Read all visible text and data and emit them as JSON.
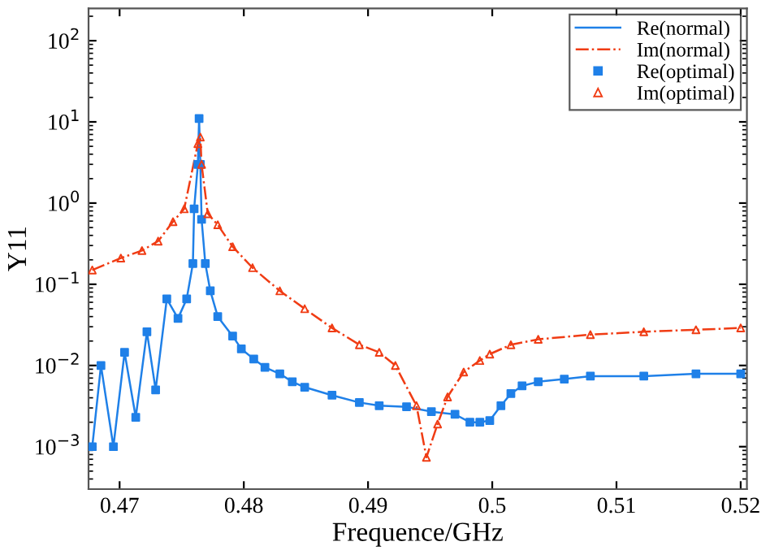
{
  "chart_data": {
    "type": "line",
    "xlabel": "Frequence/GHz",
    "ylabel": "Y11",
    "log": "y",
    "grid": false,
    "legend": "top right",
    "xlim": [
      0.4675,
      0.5205
    ],
    "xticks": [
      0.47,
      0.48,
      0.49,
      0.5,
      0.51,
      0.52
    ],
    "ylim": [
      0.0003,
      250
    ],
    "yticks": [
      {
        "value": 0.001,
        "label": "10$^{−3}$"
      },
      {
        "value": 0.01,
        "label": "10$^{−2}$"
      },
      {
        "value": 0.1,
        "label": "10$^{−1}$"
      },
      {
        "value": 1,
        "label": "10$^{0}$"
      },
      {
        "value": 10,
        "label": "10$^{1}$"
      },
      {
        "value": 100,
        "label": "10$^{2}$"
      }
    ],
    "series": [
      {
        "name": "Re(normal)",
        "color": "#1f80e8",
        "line_style": "solid",
        "marker": "none",
        "x": [
          0.4678,
          0.4685,
          0.4695,
          0.4704,
          0.4713,
          0.4722,
          0.4729,
          0.4738,
          0.4747,
          0.4754,
          0.4759,
          0.476,
          0.4763,
          0.4764,
          0.4765,
          0.4766,
          0.4769,
          0.4773,
          0.4779,
          0.4791,
          0.4798,
          0.4808,
          0.4817,
          0.4829,
          0.4839,
          0.4849,
          0.4871,
          0.4893,
          0.4909,
          0.4931,
          0.4951,
          0.497,
          0.4982,
          0.499,
          0.4998,
          0.5007,
          0.5015,
          0.5024,
          0.5037,
          0.5058,
          0.5079,
          0.5122,
          0.5164,
          0.52
        ],
        "values": [
          0.001,
          0.01,
          0.001,
          0.0145,
          0.0023,
          0.026,
          0.005,
          0.066,
          0.038,
          0.066,
          0.18,
          0.85,
          3.0,
          11,
          3.0,
          0.63,
          0.18,
          0.083,
          0.04,
          0.023,
          0.016,
          0.012,
          0.0095,
          0.0079,
          0.0063,
          0.0054,
          0.0043,
          0.0035,
          0.0032,
          0.0031,
          0.0027,
          0.0025,
          0.002,
          0.002,
          0.0021,
          0.0032,
          0.0045,
          0.0056,
          0.0063,
          0.0068,
          0.0074,
          0.0074,
          0.0079,
          0.0079
        ]
      },
      {
        "name": "Im(normal)",
        "color": "#f03c14",
        "line_style": "dashdot",
        "marker": "none",
        "x": [
          0.4678,
          0.4701,
          0.4718,
          0.4731,
          0.4743,
          0.4752,
          0.4763,
          0.4765,
          0.4766,
          0.4771,
          0.4779,
          0.4791,
          0.4807,
          0.4829,
          0.4849,
          0.4871,
          0.4893,
          0.4909,
          0.4922,
          0.4939,
          0.4947,
          0.4956,
          0.4964,
          0.4977,
          0.499,
          0.4998,
          0.5015,
          0.5037,
          0.5079,
          0.5122,
          0.5164,
          0.52
        ],
        "values": [
          0.15,
          0.21,
          0.26,
          0.34,
          0.59,
          0.85,
          5.4,
          6.5,
          3.0,
          0.74,
          0.54,
          0.29,
          0.16,
          0.083,
          0.05,
          0.029,
          0.018,
          0.0145,
          0.01,
          0.0032,
          0.00074,
          0.0019,
          0.0041,
          0.0083,
          0.0115,
          0.0138,
          0.018,
          0.021,
          0.024,
          0.026,
          0.0275,
          0.029
        ]
      },
      {
        "name": "Re(optimal)",
        "type": "scatter",
        "color": "#1f80e8",
        "marker": "square",
        "x": [
          0.4678,
          0.4685,
          0.4695,
          0.4704,
          0.4713,
          0.4722,
          0.4729,
          0.4738,
          0.4747,
          0.4754,
          0.4759,
          0.476,
          0.4763,
          0.4764,
          0.4765,
          0.4766,
          0.4769,
          0.4773,
          0.4779,
          0.4791,
          0.4798,
          0.4808,
          0.4817,
          0.4829,
          0.4839,
          0.4849,
          0.4871,
          0.4893,
          0.4909,
          0.4931,
          0.4951,
          0.497,
          0.4982,
          0.499,
          0.4998,
          0.5007,
          0.5015,
          0.5024,
          0.5037,
          0.5058,
          0.5079,
          0.5122,
          0.5164,
          0.52
        ],
        "values": [
          0.001,
          0.01,
          0.001,
          0.0145,
          0.0023,
          0.026,
          0.005,
          0.066,
          0.038,
          0.066,
          0.18,
          0.85,
          3.0,
          11,
          3.0,
          0.63,
          0.18,
          0.083,
          0.04,
          0.023,
          0.016,
          0.012,
          0.0095,
          0.0079,
          0.0063,
          0.0054,
          0.0043,
          0.0035,
          0.0032,
          0.0031,
          0.0027,
          0.0025,
          0.002,
          0.002,
          0.0021,
          0.0032,
          0.0045,
          0.0056,
          0.0063,
          0.0068,
          0.0074,
          0.0074,
          0.0079,
          0.0079
        ]
      },
      {
        "name": "Im(optimal)",
        "type": "scatter",
        "color": "#f03c14",
        "marker": "triangle",
        "x": [
          0.4678,
          0.4701,
          0.4718,
          0.4731,
          0.4743,
          0.4752,
          0.4763,
          0.4765,
          0.4766,
          0.4771,
          0.4779,
          0.4791,
          0.4807,
          0.4829,
          0.4849,
          0.4871,
          0.4893,
          0.4909,
          0.4922,
          0.4939,
          0.4947,
          0.4956,
          0.4964,
          0.4977,
          0.499,
          0.4998,
          0.5015,
          0.5037,
          0.5079,
          0.5122,
          0.5164,
          0.52
        ],
        "values": [
          0.15,
          0.21,
          0.26,
          0.34,
          0.59,
          0.85,
          5.4,
          6.5,
          3.0,
          0.74,
          0.54,
          0.29,
          0.16,
          0.083,
          0.05,
          0.029,
          0.018,
          0.0145,
          0.01,
          0.0032,
          0.00074,
          0.0019,
          0.0041,
          0.0083,
          0.0115,
          0.0138,
          0.018,
          0.021,
          0.024,
          0.026,
          0.0275,
          0.029
        ]
      }
    ]
  }
}
